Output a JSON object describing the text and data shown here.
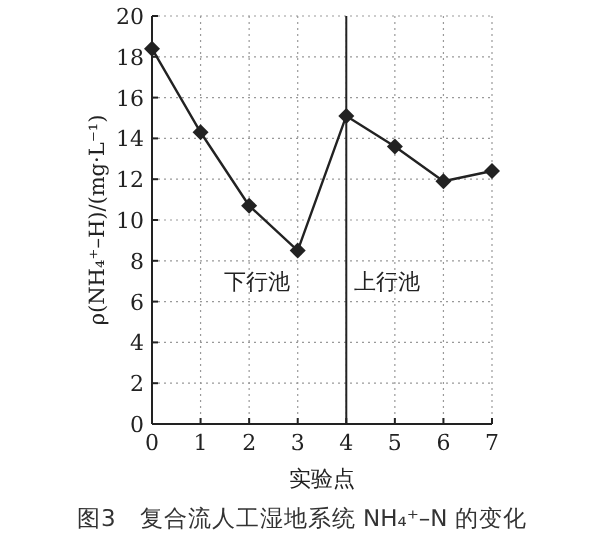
{
  "chart_data": {
    "type": "line",
    "title": "图3　复合流人工湿地系统 NH₄⁺–N 的变化",
    "xlabel": "实验点",
    "ylabel": "ρ(NH₄⁺–H)/(mg·L⁻¹)",
    "x": [
      0,
      1,
      2,
      3,
      4,
      5,
      6,
      7
    ],
    "series": [
      {
        "color": "#222222",
        "values": [
          18.4,
          14.3,
          10.7,
          8.5,
          15.1,
          13.6,
          11.9,
          12.4
        ]
      }
    ],
    "xlim": [
      0,
      7
    ],
    "xticks": [
      0,
      1,
      2,
      3,
      4,
      5,
      6,
      7
    ],
    "ylim": [
      0,
      20
    ],
    "yticks": [
      0,
      2,
      4,
      6,
      8,
      10,
      12,
      14,
      16,
      18,
      20
    ],
    "ref_lines": [
      {
        "axis": "x",
        "value": 4,
        "color": "#222222"
      }
    ],
    "annotations": [
      "下行池",
      "上行池"
    ],
    "grid": true,
    "marker": "diamond",
    "line_style": "solid"
  }
}
